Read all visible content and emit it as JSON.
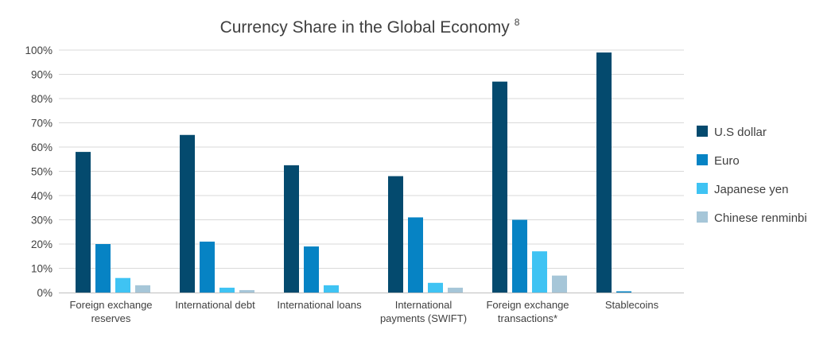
{
  "chart_data": {
    "type": "bar",
    "title": "Currency Share in the Global Economy",
    "title_superscript": "8",
    "xlabel": "",
    "ylabel": "",
    "ylim": [
      0,
      100
    ],
    "y_tick_values": [
      0,
      10,
      20,
      30,
      40,
      50,
      60,
      70,
      80,
      90,
      100
    ],
    "y_tick_labels": [
      "0%",
      "10%",
      "20%",
      "30%",
      "40%",
      "50%",
      "60%",
      "70%",
      "80%",
      "90%",
      "100%"
    ],
    "grid": true,
    "legend_position": "right",
    "categories": [
      [
        "Foreign exchange",
        "reserves"
      ],
      [
        "International debt"
      ],
      [
        "International loans"
      ],
      [
        "International",
        "payments (SWIFT)"
      ],
      [
        "Foreign exchange",
        "transactions*"
      ],
      [
        "Stablecoins"
      ]
    ],
    "series": [
      {
        "name": "U.S dollar",
        "color": "#044a6e",
        "values": [
          58,
          65,
          52.5,
          48,
          87,
          99
        ]
      },
      {
        "name": "Euro",
        "color": "#0683c4",
        "values": [
          20,
          21,
          19,
          31,
          30,
          0.5
        ]
      },
      {
        "name": "Japanese yen",
        "color": "#3fc3f3",
        "values": [
          6,
          2,
          3,
          4,
          17,
          null
        ]
      },
      {
        "name": "Chinese renminbi",
        "color": "#a6c6d8",
        "values": [
          3,
          1,
          null,
          2,
          7,
          null
        ]
      }
    ]
  }
}
